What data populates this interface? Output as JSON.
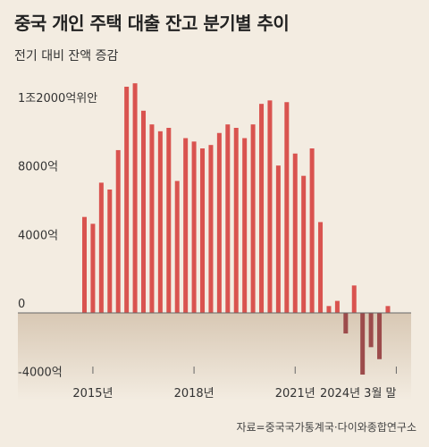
{
  "title": "중국 개인 주택 대출 잔고 분기별 추이",
  "subtitle": "전기 대비 잔액 증감",
  "source": "자료=중국국가통계국·다이와종합연구소",
  "chart_data": {
    "type": "bar",
    "title": "중국 개인 주택 대출 잔고 분기별 추이",
    "subtitle": "전기 대비 잔액 증감",
    "ylabel": "",
    "xlabel": "",
    "ylim": [
      -5000,
      14000
    ],
    "y_ticks": [
      {
        "value": 12000,
        "label": "1조2000억위안"
      },
      {
        "value": 8000,
        "label": "8000억"
      },
      {
        "value": 4000,
        "label": "4000억"
      },
      {
        "value": 0,
        "label": "0"
      },
      {
        "value": -4000,
        "label": "-4000억"
      }
    ],
    "x_ticks": [
      {
        "index": 1,
        "label": "2015년"
      },
      {
        "index": 13,
        "label": "2018년"
      },
      {
        "index": 25,
        "label": "2021년"
      },
      {
        "index": 37,
        "label": "2024년 3월 말"
      }
    ],
    "grid": false,
    "bar_color": "#d9534f",
    "negative_color": "#9c4b4b",
    "values": [
      5600,
      5200,
      7600,
      7200,
      9500,
      13200,
      13400,
      11800,
      11000,
      10600,
      10800,
      7700,
      10200,
      10000,
      9600,
      9800,
      10500,
      11000,
      10800,
      10200,
      11000,
      12200,
      12400,
      8600,
      12300,
      9300,
      8000,
      9600,
      5300,
      400,
      700,
      -1200,
      1600,
      -3600,
      -2000,
      -2700,
      400
    ]
  }
}
